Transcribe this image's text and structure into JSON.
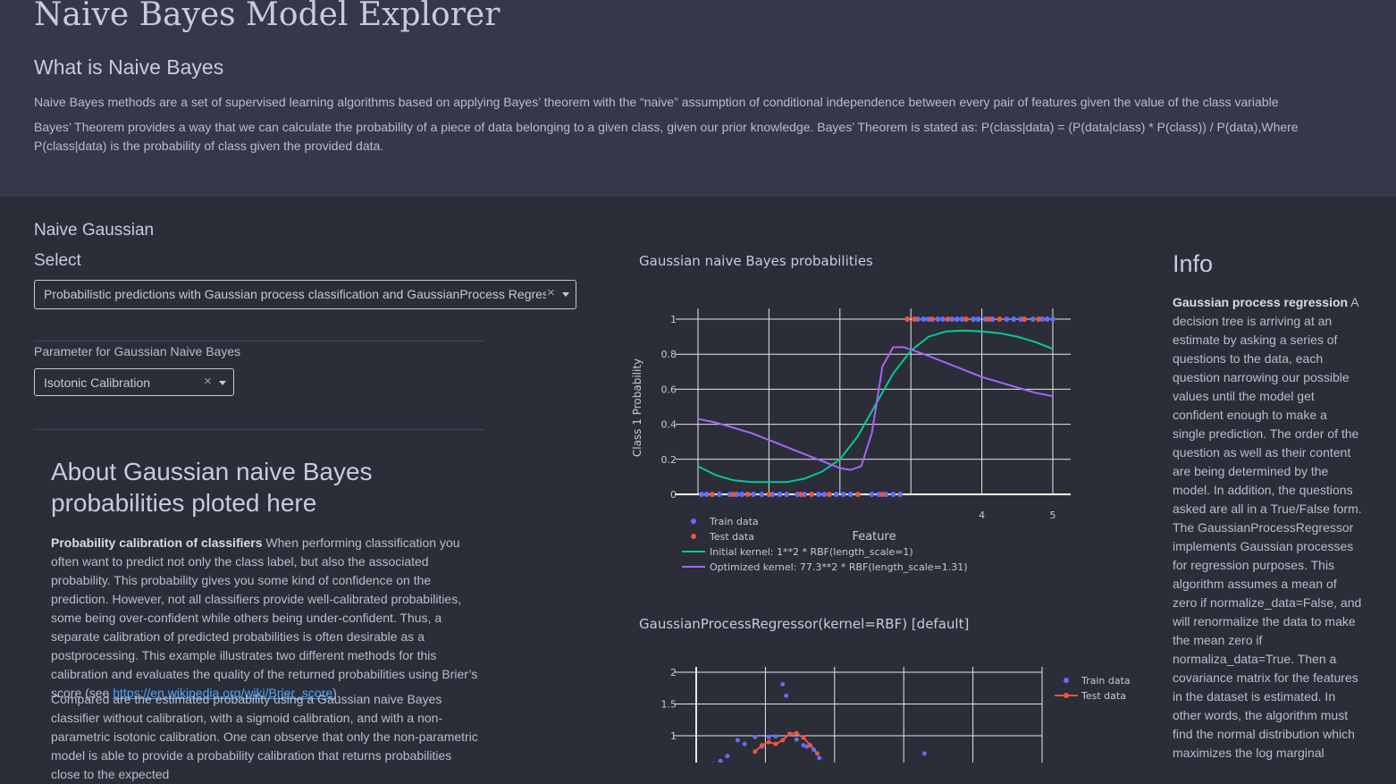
{
  "app": {
    "title": "Naive Bayes Model Explorer"
  },
  "intro": {
    "heading": "What is Naive Bayes",
    "p1": "Naive Bayes methods are a set of supervised learning algorithms based on applying Bayes’ theorem with the “naive” assumption of conditional independence between every pair of features given the value of the class variable",
    "p2": "Bayes’ Theorem provides a way that we can calculate the probability of a piece of data belonging to a given class, given our prior knowledge. Bayes’ Theorem is stated as: P(class|data) = (P(data|class) * P(class)) / P(data),Where P(class|data) is the probability of class given the provided data."
  },
  "controls": {
    "section": "Naive Gaussian",
    "select_label": "Select",
    "select_value": "Probabilistic predictions with Gaussian process classification and GaussianProcess Regressor",
    "param_label": "Parameter for Gaussian Naive Bayes",
    "param_value": "Isotonic Calibration",
    "clear_glyph": "×"
  },
  "about": {
    "title": "About Gaussian naive Bayes probabilities ploted here",
    "p1_bold": "Probability calibration of classifiers",
    "p1_text": " When performing classification you often want to predict not only the class label, but also the associated probability. This probability gives you some kind of confidence on the prediction. However, not all classifiers provide well-calibrated probabilities, some being over-confident while others being under-confident. Thus, a separate calibration of predicted probabilities is often desirable as a postprocessing. This example illustrates two different methods for this calibration and evaluates the quality of the returned probabilities using Brier’s score (see ",
    "p1_link": "https://en.wikipedia.org/wiki/Brier_score",
    "p1_end": ").",
    "p2": "Compared are the estimated probability using a Gaussian naive Bayes classifier without calibration, with a sigmoid calibration, and with a non-parametric isotonic calibration. One can observe that only the non-parametric model is able to provide a probability calibration that returns probabilities close to the expected"
  },
  "info": {
    "title": "Info",
    "bold": "Gaussian process regression",
    "text": " A decision tree is arriving at an estimate by asking a series of questions to the data, each question narrowing our possible values until the model get confident enough to make a single prediction. The order of the question as well as their content are being determined by the model. In addition, the questions asked are all in a True/False form. The GaussianProcessRegressor implements Gaussian processes for regression purposes. This algorithm assumes a mean of zero if normalize_data=False, and will renormalize the data to make the mean zero if normaliza_data=True. Then a covariance matrix for the features in the dataset is estimated. In other words, the algorithm must find the normal distribution which maximizes the log marginal"
  },
  "chart_data": [
    {
      "type": "line",
      "title": "Gaussian naive Bayes probabilities",
      "xlabel": "Feature",
      "ylabel": "Class 1 Probability",
      "xlim": [
        0,
        5
      ],
      "ylim": [
        0,
        1
      ],
      "xticks": [
        "4",
        "5"
      ],
      "xtick_values": [
        4,
        5
      ],
      "yticks": [
        "0",
        "0.2",
        "0.4",
        "0.6",
        "0.8",
        "1"
      ],
      "ytick_values": [
        0,
        0.2,
        0.4,
        0.6,
        0.8,
        1
      ],
      "legend": "bottom",
      "series": [
        {
          "name": "Train data",
          "mode": "markers",
          "color": "#636efa",
          "x": [
            0.05,
            0.12,
            0.3,
            0.45,
            0.55,
            0.62,
            0.78,
            0.9,
            1.05,
            1.15,
            1.25,
            1.4,
            1.5,
            1.7,
            1.78,
            1.95,
            2.05,
            2.15,
            2.45,
            2.55,
            2.65,
            2.75,
            2.85,
            3.1,
            3.18,
            3.25,
            3.38,
            3.45,
            3.58,
            3.65,
            3.72,
            3.88,
            3.95,
            4.05,
            4.15,
            4.35,
            4.45,
            4.55,
            4.72,
            4.85,
            4.92,
            5.0
          ],
          "y": [
            0,
            0,
            0,
            0,
            0,
            0,
            0,
            0,
            0,
            0,
            0,
            0,
            0,
            0,
            0,
            0,
            0,
            0,
            0,
            0,
            0,
            0,
            0,
            1,
            1,
            1,
            1,
            1,
            1,
            1,
            1,
            1,
            1,
            1,
            1,
            1,
            1,
            1,
            1,
            1,
            1,
            1
          ]
        },
        {
          "name": "Test data",
          "mode": "markers",
          "color": "#ef553b",
          "x": [
            0.2,
            0.5,
            0.7,
            1.0,
            1.45,
            1.6,
            1.85,
            2.25,
            2.6,
            2.95,
            3.05,
            3.3,
            3.52,
            3.78,
            4.1,
            4.25,
            4.6,
            4.8
          ],
          "y": [
            0,
            0,
            0,
            0,
            0,
            0,
            0,
            0,
            0,
            1,
            1,
            1,
            1,
            1,
            1,
            1,
            1,
            1
          ]
        },
        {
          "name": "Initial kernel: 1**2 * RBF(length_scale=1)",
          "mode": "lines",
          "color": "#00cc96",
          "x": [
            0,
            0.25,
            0.5,
            0.75,
            1.0,
            1.25,
            1.5,
            1.75,
            2.0,
            2.25,
            2.5,
            2.75,
            3.0,
            3.25,
            3.5,
            3.75,
            4.0,
            4.25,
            4.5,
            4.75,
            5.0
          ],
          "y": [
            0.16,
            0.11,
            0.08,
            0.07,
            0.07,
            0.07,
            0.09,
            0.13,
            0.2,
            0.33,
            0.51,
            0.69,
            0.82,
            0.9,
            0.93,
            0.935,
            0.93,
            0.92,
            0.9,
            0.87,
            0.83
          ]
        },
        {
          "name": "Optimized kernel: 77.3**2 * RBF(length_scale=1.31)",
          "mode": "lines",
          "color": "#ab63fa",
          "x": [
            0,
            0.25,
            0.5,
            0.75,
            1.0,
            1.25,
            1.5,
            1.75,
            2.0,
            2.15,
            2.3,
            2.45,
            2.6,
            2.75,
            2.9,
            3.05,
            3.25,
            3.5,
            3.75,
            4.0,
            4.25,
            4.5,
            4.75,
            5.0
          ],
          "y": [
            0.43,
            0.41,
            0.38,
            0.35,
            0.31,
            0.27,
            0.23,
            0.19,
            0.15,
            0.14,
            0.16,
            0.35,
            0.73,
            0.84,
            0.84,
            0.82,
            0.79,
            0.75,
            0.71,
            0.67,
            0.64,
            0.61,
            0.58,
            0.56
          ]
        }
      ]
    },
    {
      "type": "scatter",
      "title": "GaussianProcessRegressor(kernel=RBF) [default]",
      "xlim": [
        0,
        5
      ],
      "ylim": [
        0.7,
        2.2
      ],
      "yticks": [
        "2",
        "1.5",
        "1"
      ],
      "ytick_values": [
        2,
        1.5,
        1
      ],
      "legend": "top-right",
      "series": [
        {
          "name": "Train data",
          "mode": "markers",
          "color": "#636efa",
          "x": [
            0.25,
            0.35,
            0.45,
            0.6,
            0.7,
            0.85,
            0.95,
            1.05,
            1.15,
            1.25,
            1.3,
            1.45,
            1.55,
            1.6,
            1.7,
            1.78,
            3.3
          ],
          "y": [
            0.55,
            0.6,
            0.68,
            0.93,
            0.87,
            0.98,
            0.83,
            0.98,
            0.99,
            1.81,
            1.63,
            0.94,
            0.85,
            0.83,
            0.78,
            0.65,
            0.72
          ]
        },
        {
          "name": "Test data",
          "mode": "lines+markers",
          "color": "#ef553b",
          "x": [
            0.85,
            0.95,
            1.05,
            1.15,
            1.25,
            1.35,
            1.45,
            1.55,
            1.65,
            1.75
          ],
          "y": [
            0.75,
            0.85,
            0.9,
            0.87,
            0.93,
            1.03,
            1.04,
            0.97,
            0.85,
            0.72
          ]
        }
      ]
    }
  ]
}
